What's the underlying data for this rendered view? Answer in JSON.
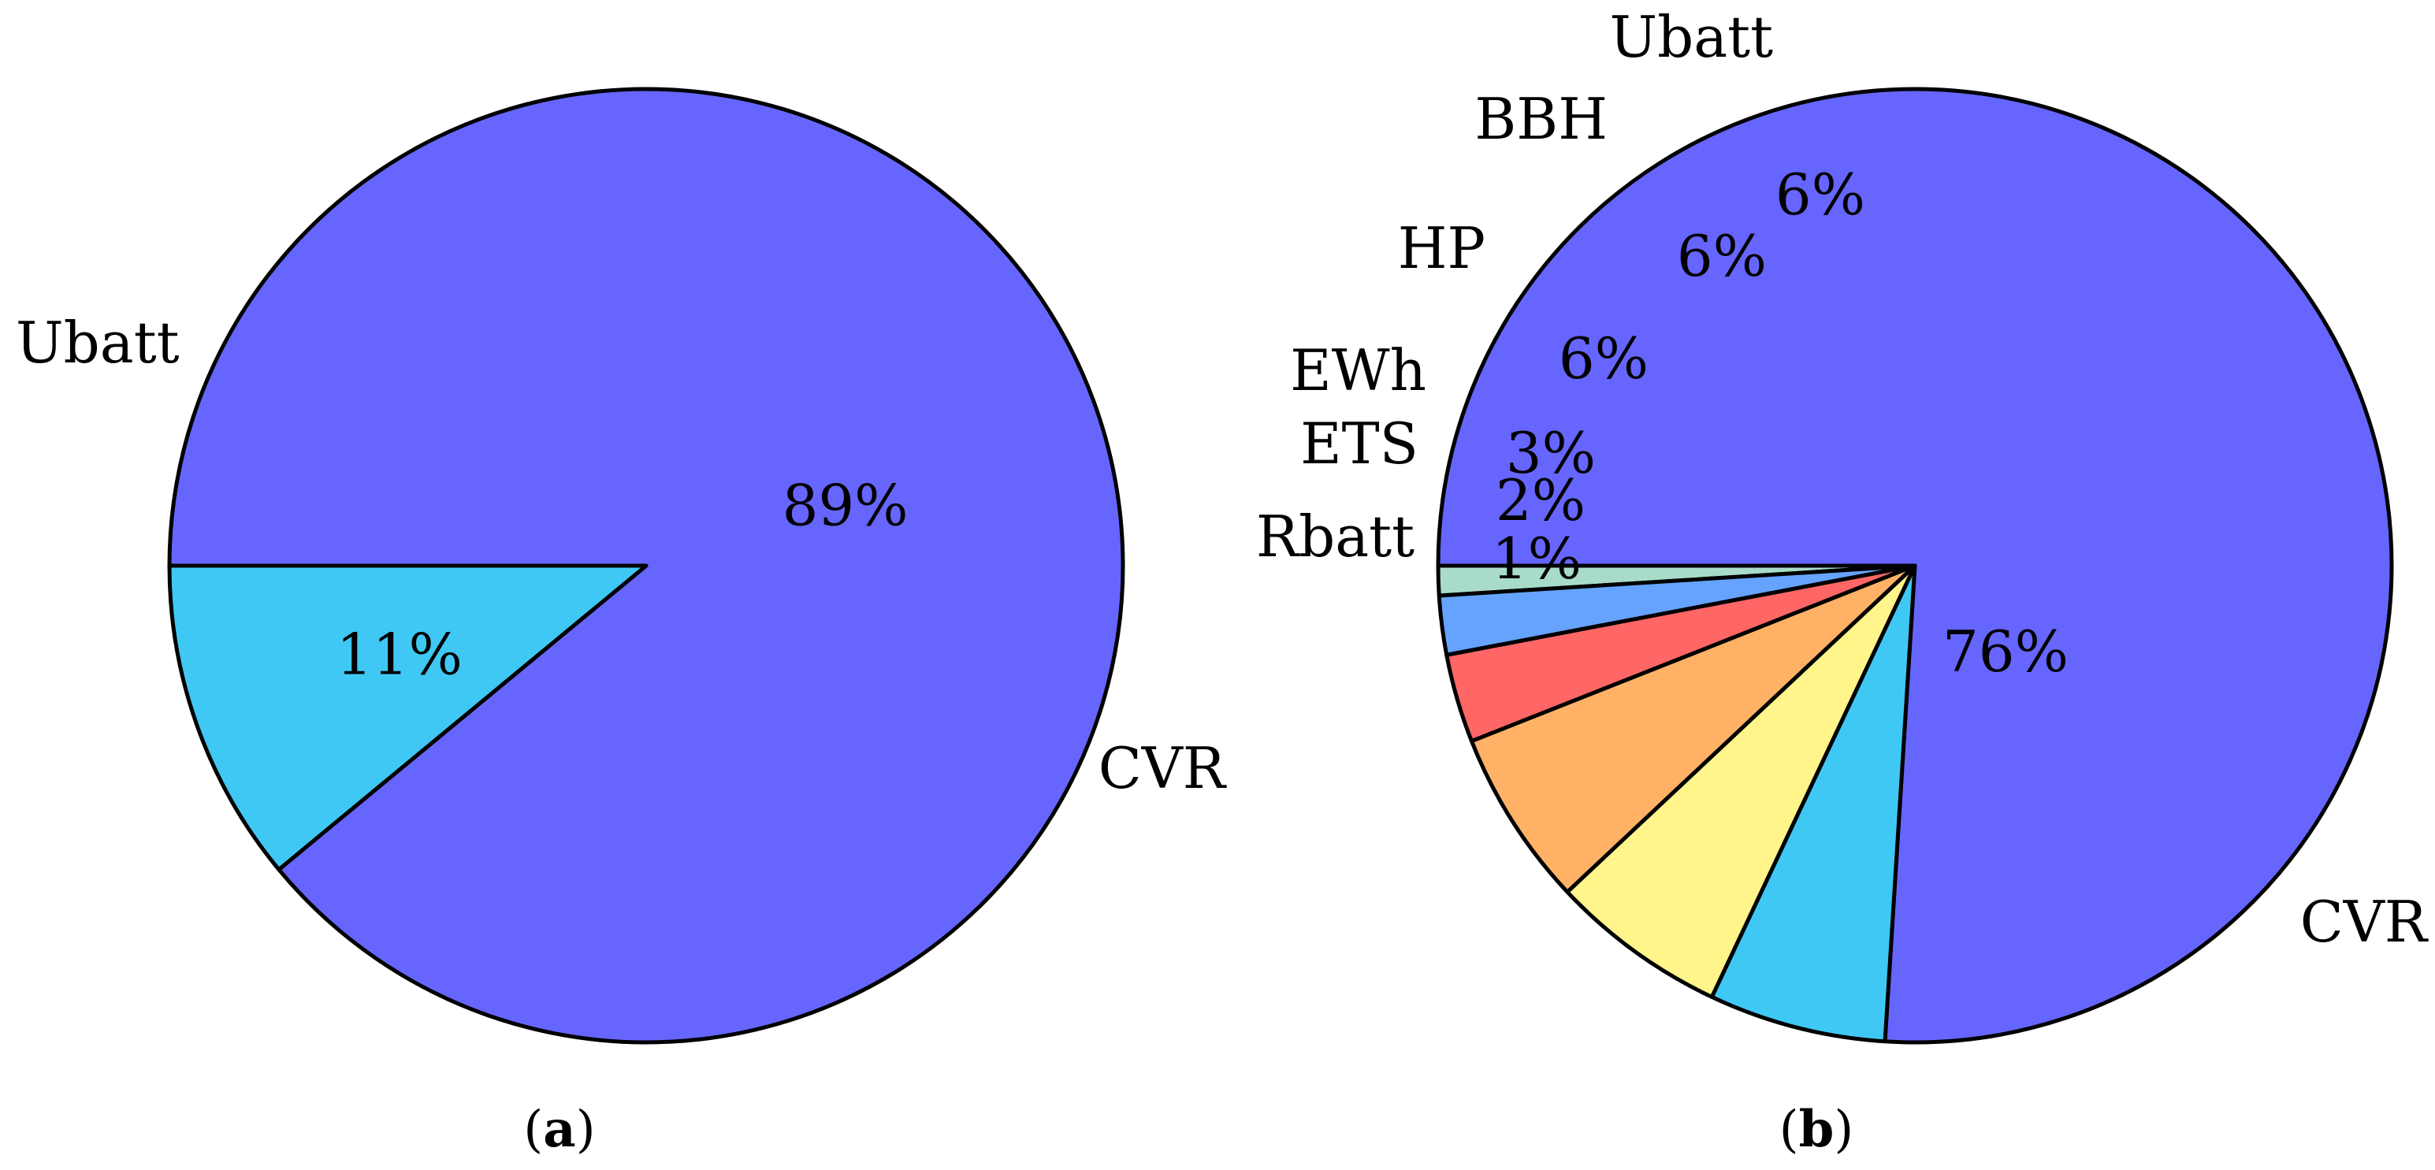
{
  "chart_data": [
    {
      "type": "pie",
      "caption": {
        "open": "(",
        "letter": "a",
        "close": ")"
      },
      "slices": [
        {
          "label": "CVR",
          "value": 89,
          "value_label": "89%",
          "color": "#6666ff"
        },
        {
          "label": "Ubatt",
          "value": 11,
          "value_label": "11%",
          "color": "#40c8f4"
        }
      ]
    },
    {
      "type": "pie",
      "caption": {
        "open": "(",
        "letter": "b",
        "close": ")"
      },
      "slices": [
        {
          "label": "CVR",
          "value": 76,
          "value_label": "76%",
          "color": "#6666ff"
        },
        {
          "label": "Rbatt",
          "value": 1,
          "value_label": "1%",
          "color": "#a8dcc8"
        },
        {
          "label": "ETS",
          "value": 2,
          "value_label": "2%",
          "color": "#66a3ff"
        },
        {
          "label": "EWh",
          "value": 3,
          "value_label": "3%",
          "color": "#ff6666"
        },
        {
          "label": "HP",
          "value": 6,
          "value_label": "6%",
          "color": "#ffb266"
        },
        {
          "label": "BBH",
          "value": 6,
          "value_label": "6%",
          "color": "#fff58a"
        },
        {
          "label": "Ubatt",
          "value": 6,
          "value_label": "6%",
          "color": "#40c8f4"
        }
      ]
    }
  ]
}
